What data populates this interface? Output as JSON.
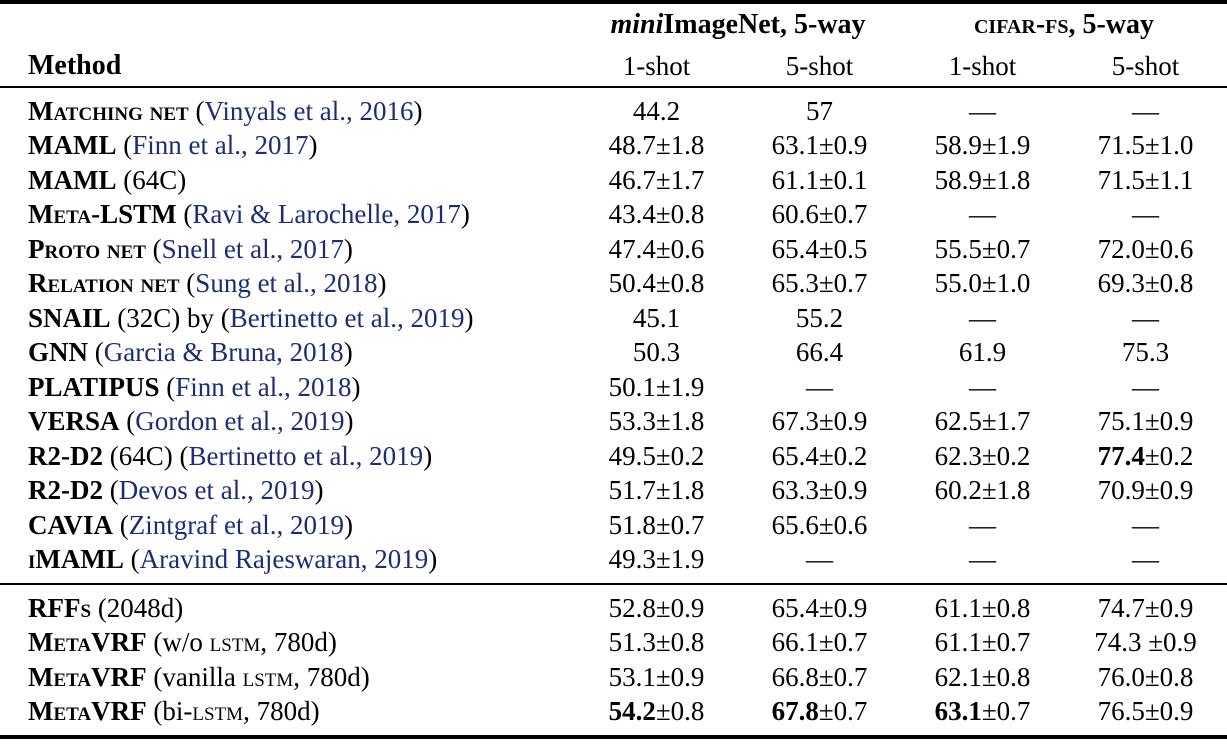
{
  "colors": {
    "citation_link": "#1b2d76",
    "text": "#000000",
    "rule": "#000000",
    "background": "#ffffff"
  },
  "header": {
    "method_label": "Method",
    "groups": [
      {
        "name": "miniimagenet-5way",
        "segments": [
          {
            "t": "mini",
            "s": "bi"
          },
          {
            "t": "ImageNet, 5-way",
            "s": "b"
          }
        ]
      },
      {
        "name": "cifarfs-5way",
        "segments": [
          {
            "t": "cifar-fs",
            "s": "b-sc"
          },
          {
            "t": ", 5-way",
            "s": "b"
          }
        ]
      }
    ],
    "subheaders": [
      "1-shot",
      "5-shot",
      "1-shot",
      "5-shot"
    ]
  },
  "blocks": [
    {
      "rows": [
        {
          "method": [
            {
              "t": "Matching net",
              "s": "b-sc"
            },
            {
              "t": " (",
              "s": "plain"
            },
            {
              "t": "Vinyals et al., 2016",
              "s": "cite"
            },
            {
              "t": ")",
              "s": "plain"
            }
          ],
          "cells": [
            {
              "r": "44.2"
            },
            {
              "r": "57"
            },
            {
              "r": "—"
            },
            {
              "r": "—"
            }
          ]
        },
        {
          "method": [
            {
              "t": "MAML",
              "s": "b-sc"
            },
            {
              "t": " (",
              "s": "plain"
            },
            {
              "t": "Finn et al., 2017",
              "s": "cite"
            },
            {
              "t": ")",
              "s": "plain"
            }
          ],
          "cells": [
            {
              "r": "48.7±1.8"
            },
            {
              "r": "63.1±0.9"
            },
            {
              "r": "58.9±1.9"
            },
            {
              "r": "71.5±1.0"
            }
          ]
        },
        {
          "method": [
            {
              "t": "MAML",
              "s": "b-sc"
            },
            {
              "t": " (64C)",
              "s": "plain"
            }
          ],
          "cells": [
            {
              "r": "46.7±1.7"
            },
            {
              "r": "61.1±0.1"
            },
            {
              "r": "58.9±1.8"
            },
            {
              "r": "71.5±1.1"
            }
          ]
        },
        {
          "method": [
            {
              "t": "Meta-LSTM",
              "s": "b-sc"
            },
            {
              "t": " (",
              "s": "plain"
            },
            {
              "t": "Ravi & Larochelle, 2017",
              "s": "cite"
            },
            {
              "t": ")",
              "s": "plain"
            }
          ],
          "cells": [
            {
              "r": "43.4±0.8"
            },
            {
              "r": "60.6±0.7"
            },
            {
              "r": "—"
            },
            {
              "r": "—"
            }
          ]
        },
        {
          "method": [
            {
              "t": "Proto net",
              "s": "b-sc"
            },
            {
              "t": " (",
              "s": "plain"
            },
            {
              "t": "Snell et al., 2017",
              "s": "cite"
            },
            {
              "t": ")",
              "s": "plain"
            }
          ],
          "cells": [
            {
              "r": "47.4±0.6"
            },
            {
              "r": "65.4±0.5"
            },
            {
              "r": "55.5±0.7"
            },
            {
              "r": "72.0±0.6"
            }
          ]
        },
        {
          "method": [
            {
              "t": "Relation net",
              "s": "b-sc"
            },
            {
              "t": " (",
              "s": "plain"
            },
            {
              "t": "Sung et al., 2018",
              "s": "cite"
            },
            {
              "t": ")",
              "s": "plain"
            }
          ],
          "cells": [
            {
              "r": "50.4±0.8"
            },
            {
              "r": "65.3±0.7"
            },
            {
              "r": "55.0±1.0"
            },
            {
              "r": "69.3±0.8"
            }
          ]
        },
        {
          "method": [
            {
              "t": "SNAIL",
              "s": "b-sc"
            },
            {
              "t": " (32C) by (",
              "s": "plain"
            },
            {
              "t": "Bertinetto et al., 2019",
              "s": "cite"
            },
            {
              "t": ")",
              "s": "plain"
            }
          ],
          "cells": [
            {
              "r": "45.1"
            },
            {
              "r": "55.2"
            },
            {
              "r": "—"
            },
            {
              "r": "—"
            }
          ]
        },
        {
          "method": [
            {
              "t": "GNN",
              "s": "b-sc"
            },
            {
              "t": " (",
              "s": "plain"
            },
            {
              "t": "Garcia & Bruna, 2018",
              "s": "cite"
            },
            {
              "t": ")",
              "s": "plain"
            }
          ],
          "cells": [
            {
              "r": "50.3"
            },
            {
              "r": "66.4"
            },
            {
              "r": "61.9"
            },
            {
              "r": "75.3"
            }
          ]
        },
        {
          "method": [
            {
              "t": "PLATIPUS",
              "s": "b-sc"
            },
            {
              "t": " (",
              "s": "plain"
            },
            {
              "t": "Finn et al., 2018",
              "s": "cite"
            },
            {
              "t": ")",
              "s": "plain"
            }
          ],
          "cells": [
            {
              "r": "50.1±1.9"
            },
            {
              "r": "—"
            },
            {
              "r": "—"
            },
            {
              "r": "—"
            }
          ]
        },
        {
          "method": [
            {
              "t": "VERSA",
              "s": "b-sc"
            },
            {
              "t": " (",
              "s": "plain"
            },
            {
              "t": "Gordon et al., 2019",
              "s": "cite"
            },
            {
              "t": ")",
              "s": "plain"
            }
          ],
          "cells": [
            {
              "r": "53.3±1.8"
            },
            {
              "r": "67.3±0.9"
            },
            {
              "r": "62.5±1.7"
            },
            {
              "r": "75.1±0.9"
            }
          ]
        },
        {
          "method": [
            {
              "t": "R2-D2",
              "s": "b-sc"
            },
            {
              "t": " (64C) (",
              "s": "plain"
            },
            {
              "t": "Bertinetto et al., 2019",
              "s": "cite"
            },
            {
              "t": ")",
              "s": "plain"
            }
          ],
          "cells": [
            {
              "r": "49.5±0.2"
            },
            {
              "r": "65.4±0.2"
            },
            {
              "r": "62.3±0.2"
            },
            {
              "b": "77.4",
              "r": "±0.2"
            }
          ]
        },
        {
          "method": [
            {
              "t": "R2-D2",
              "s": "b-sc"
            },
            {
              "t": " (",
              "s": "plain"
            },
            {
              "t": "Devos et al., 2019",
              "s": "cite"
            },
            {
              "t": ")",
              "s": "plain"
            }
          ],
          "cells": [
            {
              "r": "51.7±1.8"
            },
            {
              "r": "63.3±0.9"
            },
            {
              "r": "60.2±1.8"
            },
            {
              "r": "70.9±0.9"
            }
          ]
        },
        {
          "method": [
            {
              "t": "CAVIA",
              "s": "b-sc"
            },
            {
              "t": " (",
              "s": "plain"
            },
            {
              "t": "Zintgraf et al., 2019",
              "s": "cite"
            },
            {
              "t": ")",
              "s": "plain"
            }
          ],
          "cells": [
            {
              "r": "51.8±0.7"
            },
            {
              "r": "65.6±0.6"
            },
            {
              "r": "—"
            },
            {
              "r": "—"
            }
          ]
        },
        {
          "method": [
            {
              "t": "iMAML",
              "s": "b-sc"
            },
            {
              "t": " (",
              "s": "plain"
            },
            {
              "t": "Aravind Rajeswaran, 2019",
              "s": "cite"
            },
            {
              "t": ")",
              "s": "plain"
            }
          ],
          "cells": [
            {
              "r": "49.3±1.9"
            },
            {
              "r": "—"
            },
            {
              "r": "—"
            },
            {
              "r": "—"
            }
          ]
        }
      ]
    },
    {
      "rows": [
        {
          "method": [
            {
              "t": "RFFs",
              "s": "b-sc"
            },
            {
              "t": " (2048d)",
              "s": "plain"
            }
          ],
          "cells": [
            {
              "r": "52.8±0.9"
            },
            {
              "r": "65.4±0.9"
            },
            {
              "r": "61.1±0.8"
            },
            {
              "r": "74.7±0.9"
            }
          ]
        },
        {
          "method": [
            {
              "t": "MetaVRF",
              "s": "b-sc"
            },
            {
              "t": " (w/o ",
              "s": "plain"
            },
            {
              "t": "lstm",
              "s": "sc"
            },
            {
              "t": ", 780d)",
              "s": "plain"
            }
          ],
          "cells": [
            {
              "r": "51.3±0.8"
            },
            {
              "r": "66.1±0.7"
            },
            {
              "r": "61.1±0.7"
            },
            {
              "r": "74.3 ±0.9"
            }
          ]
        },
        {
          "method": [
            {
              "t": "MetaVRF",
              "s": "b-sc"
            },
            {
              "t": " (vanilla ",
              "s": "plain"
            },
            {
              "t": "lstm",
              "s": "sc"
            },
            {
              "t": ", 780d)",
              "s": "plain"
            }
          ],
          "cells": [
            {
              "r": "53.1±0.9"
            },
            {
              "r": "66.8±0.7"
            },
            {
              "r": "62.1±0.8"
            },
            {
              "r": "76.0±0.8"
            }
          ]
        },
        {
          "method": [
            {
              "t": "MetaVRF",
              "s": "b-sc"
            },
            {
              "t": " (bi-",
              "s": "plain"
            },
            {
              "t": "lstm",
              "s": "sc"
            },
            {
              "t": ", 780d)",
              "s": "plain"
            }
          ],
          "cells": [
            {
              "b": "54.2",
              "r": "±0.8"
            },
            {
              "b": "67.8",
              "r": "±0.7"
            },
            {
              "b": "63.1",
              "r": "±0.7"
            },
            {
              "r": "76.5±0.9"
            }
          ]
        }
      ]
    }
  ]
}
